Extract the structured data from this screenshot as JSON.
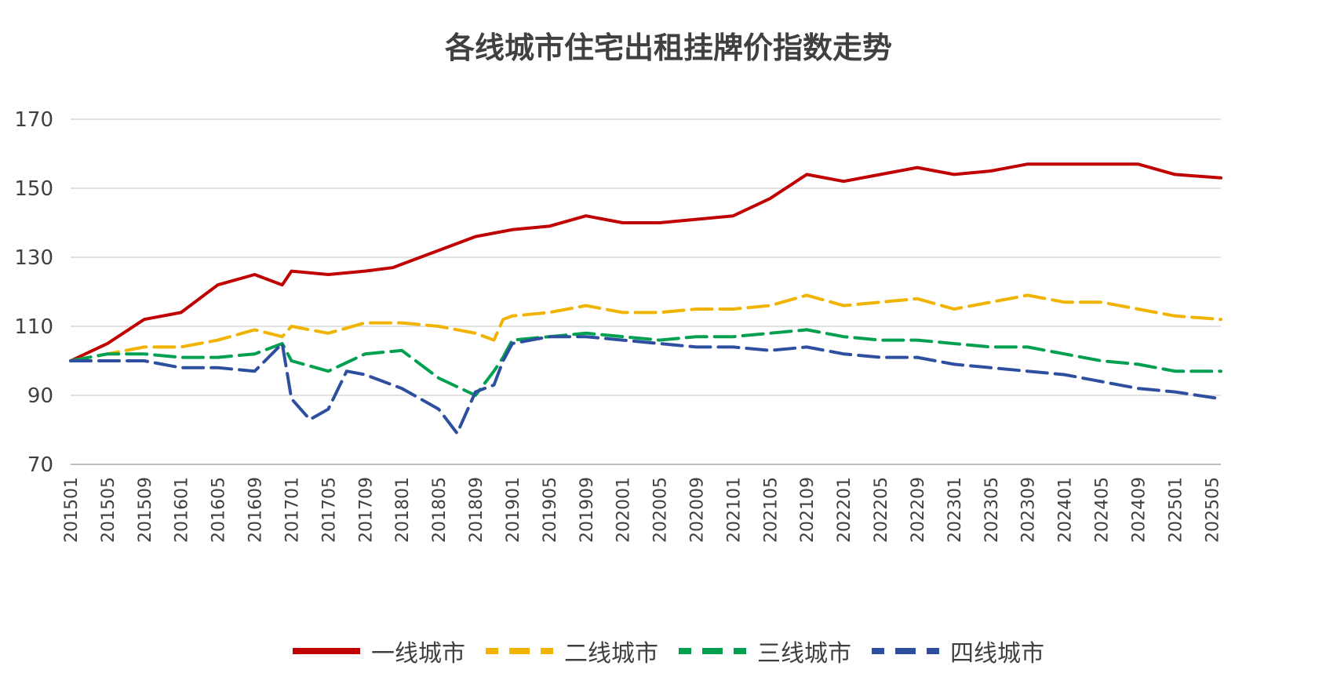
{
  "chart_data": {
    "type": "line",
    "title": "各线城市住宅出租挂牌价指数走势",
    "ylim": [
      70,
      170
    ],
    "yticks": [
      70,
      90,
      110,
      130,
      150,
      170
    ],
    "grid": true,
    "legend_position": "bottom",
    "xtick_labels": [
      "201501",
      "201505",
      "201509",
      "201601",
      "201605",
      "201609",
      "201701",
      "201705",
      "201709",
      "201801",
      "201805",
      "201809",
      "201901",
      "201905",
      "201909",
      "202001",
      "202005",
      "202009",
      "202101",
      "202105",
      "202109",
      "202201",
      "202205",
      "202209",
      "202301",
      "202305",
      "202309",
      "202401",
      "202405",
      "202409",
      "202501",
      "202505"
    ],
    "series": [
      {
        "name": "一线城市",
        "color": "#C00000",
        "dash": "solid",
        "x": [
          "201501",
          "201505",
          "201509",
          "201601",
          "201605",
          "201609",
          "201612",
          "201701",
          "201705",
          "201709",
          "201712",
          "201804",
          "201809",
          "201901",
          "201905",
          "201909",
          "202001",
          "202005",
          "202009",
          "202101",
          "202105",
          "202109",
          "202201",
          "202205",
          "202209",
          "202301",
          "202305",
          "202309",
          "202401",
          "202405",
          "202409",
          "202501",
          "202506"
        ],
        "values": [
          100,
          105,
          112,
          114,
          122,
          125,
          122,
          126,
          125,
          126,
          127,
          131,
          136,
          138,
          139,
          142,
          140,
          140,
          141,
          142,
          147,
          154,
          152,
          154,
          156,
          154,
          155,
          157,
          157,
          157,
          157,
          154,
          153
        ]
      },
      {
        "name": "二线城市",
        "color": "#F0B400",
        "dash": "segments",
        "x": [
          "201501",
          "201505",
          "201509",
          "201601",
          "201605",
          "201609",
          "201612",
          "201701",
          "201705",
          "201709",
          "201801",
          "201805",
          "201809",
          "201811",
          "201812",
          "201901",
          "201905",
          "201909",
          "202001",
          "202005",
          "202009",
          "202101",
          "202105",
          "202109",
          "202201",
          "202205",
          "202209",
          "202301",
          "202305",
          "202309",
          "202401",
          "202405",
          "202409",
          "202501",
          "202506"
        ],
        "values": [
          100,
          102,
          104,
          104,
          106,
          109,
          107,
          110,
          108,
          111,
          111,
          110,
          108,
          106,
          112,
          113,
          114,
          116,
          114,
          114,
          115,
          115,
          116,
          119,
          116,
          117,
          118,
          115,
          117,
          119,
          117,
          117,
          115,
          113,
          112
        ]
      },
      {
        "name": "三线城市",
        "color": "#00A050",
        "dash": "segments",
        "x": [
          "201501",
          "201505",
          "201509",
          "201601",
          "201605",
          "201609",
          "201612",
          "201701",
          "201705",
          "201709",
          "201801",
          "201805",
          "201809",
          "201811",
          "201812",
          "201901",
          "201905",
          "201909",
          "202001",
          "202005",
          "202009",
          "202101",
          "202105",
          "202109",
          "202201",
          "202205",
          "202209",
          "202301",
          "202305",
          "202309",
          "202401",
          "202405",
          "202409",
          "202501",
          "202506"
        ],
        "values": [
          100,
          102,
          102,
          101,
          101,
          102,
          105,
          100,
          97,
          102,
          103,
          95,
          90,
          97,
          101,
          106,
          107,
          108,
          107,
          106,
          107,
          107,
          108,
          109,
          107,
          106,
          106,
          105,
          104,
          104,
          102,
          100,
          99,
          97,
          97
        ]
      },
      {
        "name": "四线城市",
        "color": "#2E4FA0",
        "dash": "segments",
        "x": [
          "201501",
          "201505",
          "201509",
          "201601",
          "201605",
          "201609",
          "201612",
          "201701",
          "201703",
          "201705",
          "201707",
          "201709",
          "201801",
          "201805",
          "201807",
          "201809",
          "201811",
          "201812",
          "201901",
          "201905",
          "201909",
          "202001",
          "202005",
          "202009",
          "202101",
          "202105",
          "202109",
          "202201",
          "202205",
          "202209",
          "202301",
          "202305",
          "202309",
          "202401",
          "202405",
          "202409",
          "202501",
          "202506"
        ],
        "values": [
          100,
          100,
          100,
          98,
          98,
          97,
          105,
          89,
          83,
          86,
          97,
          96,
          92,
          86,
          79,
          91,
          93,
          100,
          105,
          107,
          107,
          106,
          105,
          104,
          104,
          103,
          104,
          102,
          101,
          101,
          99,
          98,
          97,
          96,
          94,
          92,
          91,
          89
        ]
      }
    ]
  }
}
